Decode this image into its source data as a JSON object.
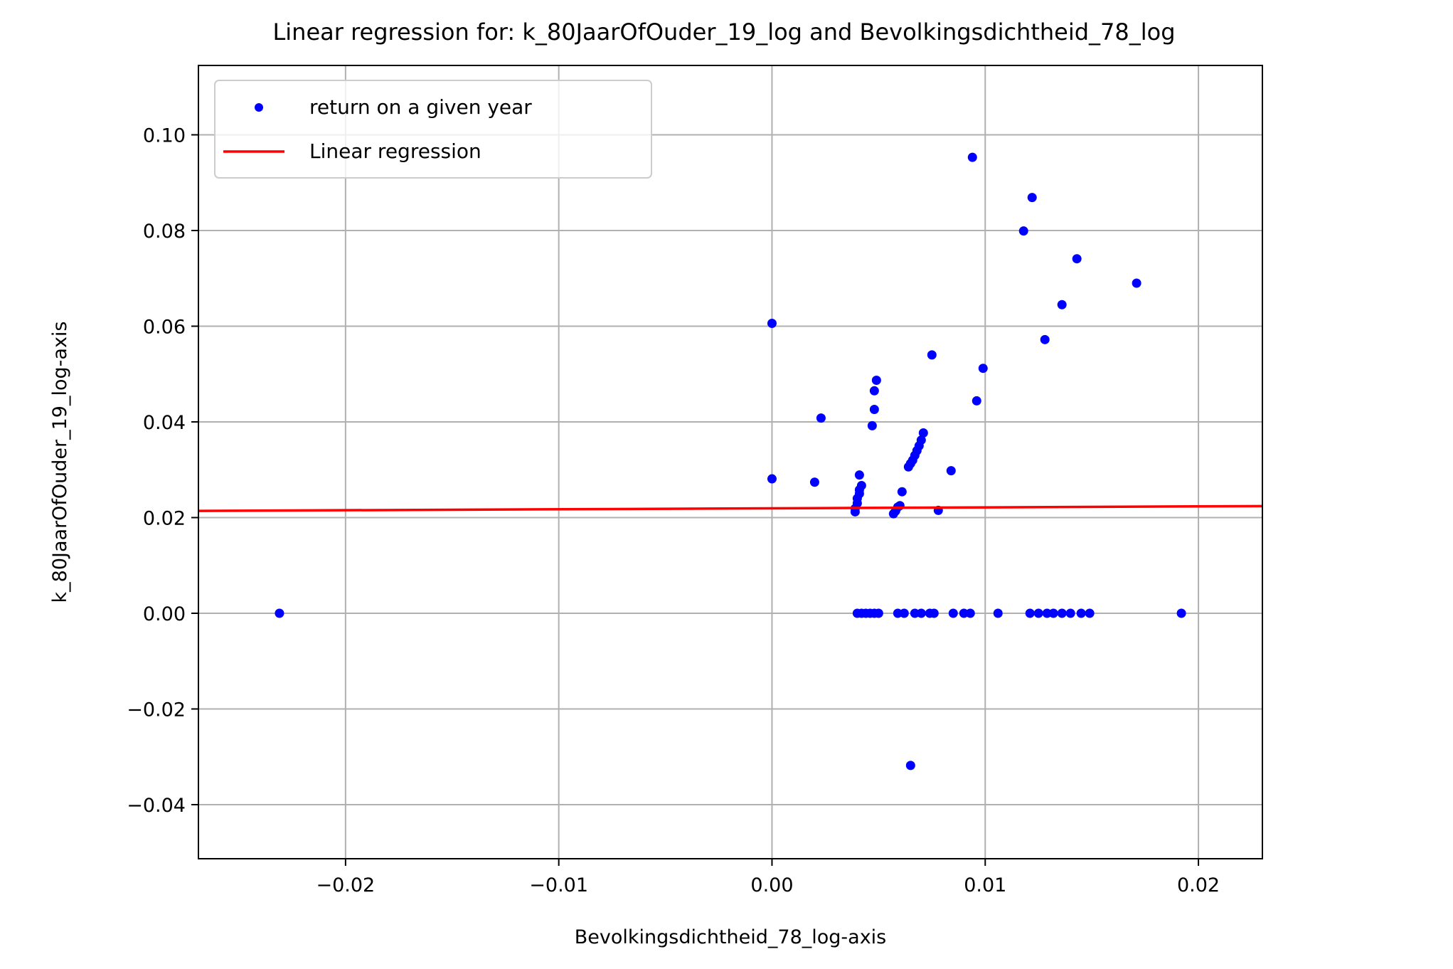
{
  "chart_data": {
    "type": "scatter",
    "title": "Linear regression for: k_80JaarOfOuder_19_log and Bevolkingsdichtheid_78_log",
    "xlabel": "Bevolkingsdichtheid_78_log-axis",
    "ylabel": "k_80JaarOfOuder_19_log-axis",
    "xlim": [
      -0.0269,
      0.023
    ],
    "ylim": [
      -0.0513,
      0.1145
    ],
    "grid": true,
    "legend_position": "upper-left",
    "x_ticks": [
      -0.02,
      -0.01,
      0.0,
      0.01,
      0.02
    ],
    "x_tick_labels": [
      "−0.02",
      "−0.01",
      "0.00",
      "0.01",
      "0.02"
    ],
    "y_ticks": [
      -0.04,
      -0.02,
      0.0,
      0.02,
      0.04,
      0.06,
      0.08,
      0.1
    ],
    "y_tick_labels": [
      "−0.04",
      "−0.02",
      "0.00",
      "0.02",
      "0.04",
      "0.06",
      "0.08",
      "0.10"
    ],
    "series": [
      {
        "name": "return on a given year",
        "kind": "scatter",
        "color": "#0000ff",
        "points": [
          [
            -0.0231,
            0.0
          ],
          [
            0.0,
            0.0606
          ],
          [
            0.0,
            0.0281
          ],
          [
            0.002,
            0.0274
          ],
          [
            0.0023,
            0.0408
          ],
          [
            0.0039,
            0.0212
          ],
          [
            0.0039,
            0.0219
          ],
          [
            0.004,
            0.023
          ],
          [
            0.004,
            0.024
          ],
          [
            0.0041,
            0.025
          ],
          [
            0.0041,
            0.0258
          ],
          [
            0.0042,
            0.0267
          ],
          [
            0.0041,
            0.0289
          ],
          [
            0.0047,
            0.0392
          ],
          [
            0.0048,
            0.0426
          ],
          [
            0.0048,
            0.0465
          ],
          [
            0.0049,
            0.0487
          ],
          [
            0.0057,
            0.0208
          ],
          [
            0.0058,
            0.0214
          ],
          [
            0.0059,
            0.0222
          ],
          [
            0.006,
            0.0225
          ],
          [
            0.0061,
            0.0254
          ],
          [
            0.0064,
            0.0306
          ],
          [
            0.0065,
            0.0313
          ],
          [
            0.0066,
            0.032
          ],
          [
            0.0067,
            0.033
          ],
          [
            0.0068,
            0.034
          ],
          [
            0.0069,
            0.035
          ],
          [
            0.007,
            0.0362
          ],
          [
            0.0071,
            0.0377
          ],
          [
            0.0065,
            -0.0318
          ],
          [
            0.0075,
            0.054
          ],
          [
            0.0078,
            0.0215
          ],
          [
            0.0084,
            0.0298
          ],
          [
            0.0094,
            0.0953
          ],
          [
            0.0096,
            0.0444
          ],
          [
            0.0099,
            0.0512
          ],
          [
            0.0118,
            0.0799
          ],
          [
            0.0122,
            0.0869
          ],
          [
            0.0128,
            0.0572
          ],
          [
            0.0136,
            0.0645
          ],
          [
            0.0143,
            0.0741
          ],
          [
            0.0171,
            0.069
          ],
          [
            0.004,
            0.0
          ],
          [
            0.0042,
            0.0
          ],
          [
            0.0044,
            0.0
          ],
          [
            0.0046,
            0.0
          ],
          [
            0.0048,
            0.0
          ],
          [
            0.005,
            0.0
          ],
          [
            0.0059,
            0.0
          ],
          [
            0.0062,
            0.0
          ],
          [
            0.0067,
            0.0
          ],
          [
            0.007,
            0.0
          ],
          [
            0.0074,
            0.0
          ],
          [
            0.0076,
            0.0
          ],
          [
            0.0085,
            0.0
          ],
          [
            0.009,
            0.0
          ],
          [
            0.0093,
            0.0
          ],
          [
            0.0106,
            0.0
          ],
          [
            0.0121,
            0.0
          ],
          [
            0.0125,
            0.0
          ],
          [
            0.0129,
            0.0
          ],
          [
            0.0132,
            0.0
          ],
          [
            0.0136,
            0.0
          ],
          [
            0.014,
            0.0
          ],
          [
            0.0145,
            0.0
          ],
          [
            0.0149,
            0.0
          ],
          [
            0.0192,
            0.0
          ]
        ]
      },
      {
        "name": "Linear regression",
        "kind": "line",
        "color": "#ff0000",
        "x": [
          -0.0269,
          0.023
        ],
        "y": [
          0.0214,
          0.0224
        ]
      }
    ]
  }
}
